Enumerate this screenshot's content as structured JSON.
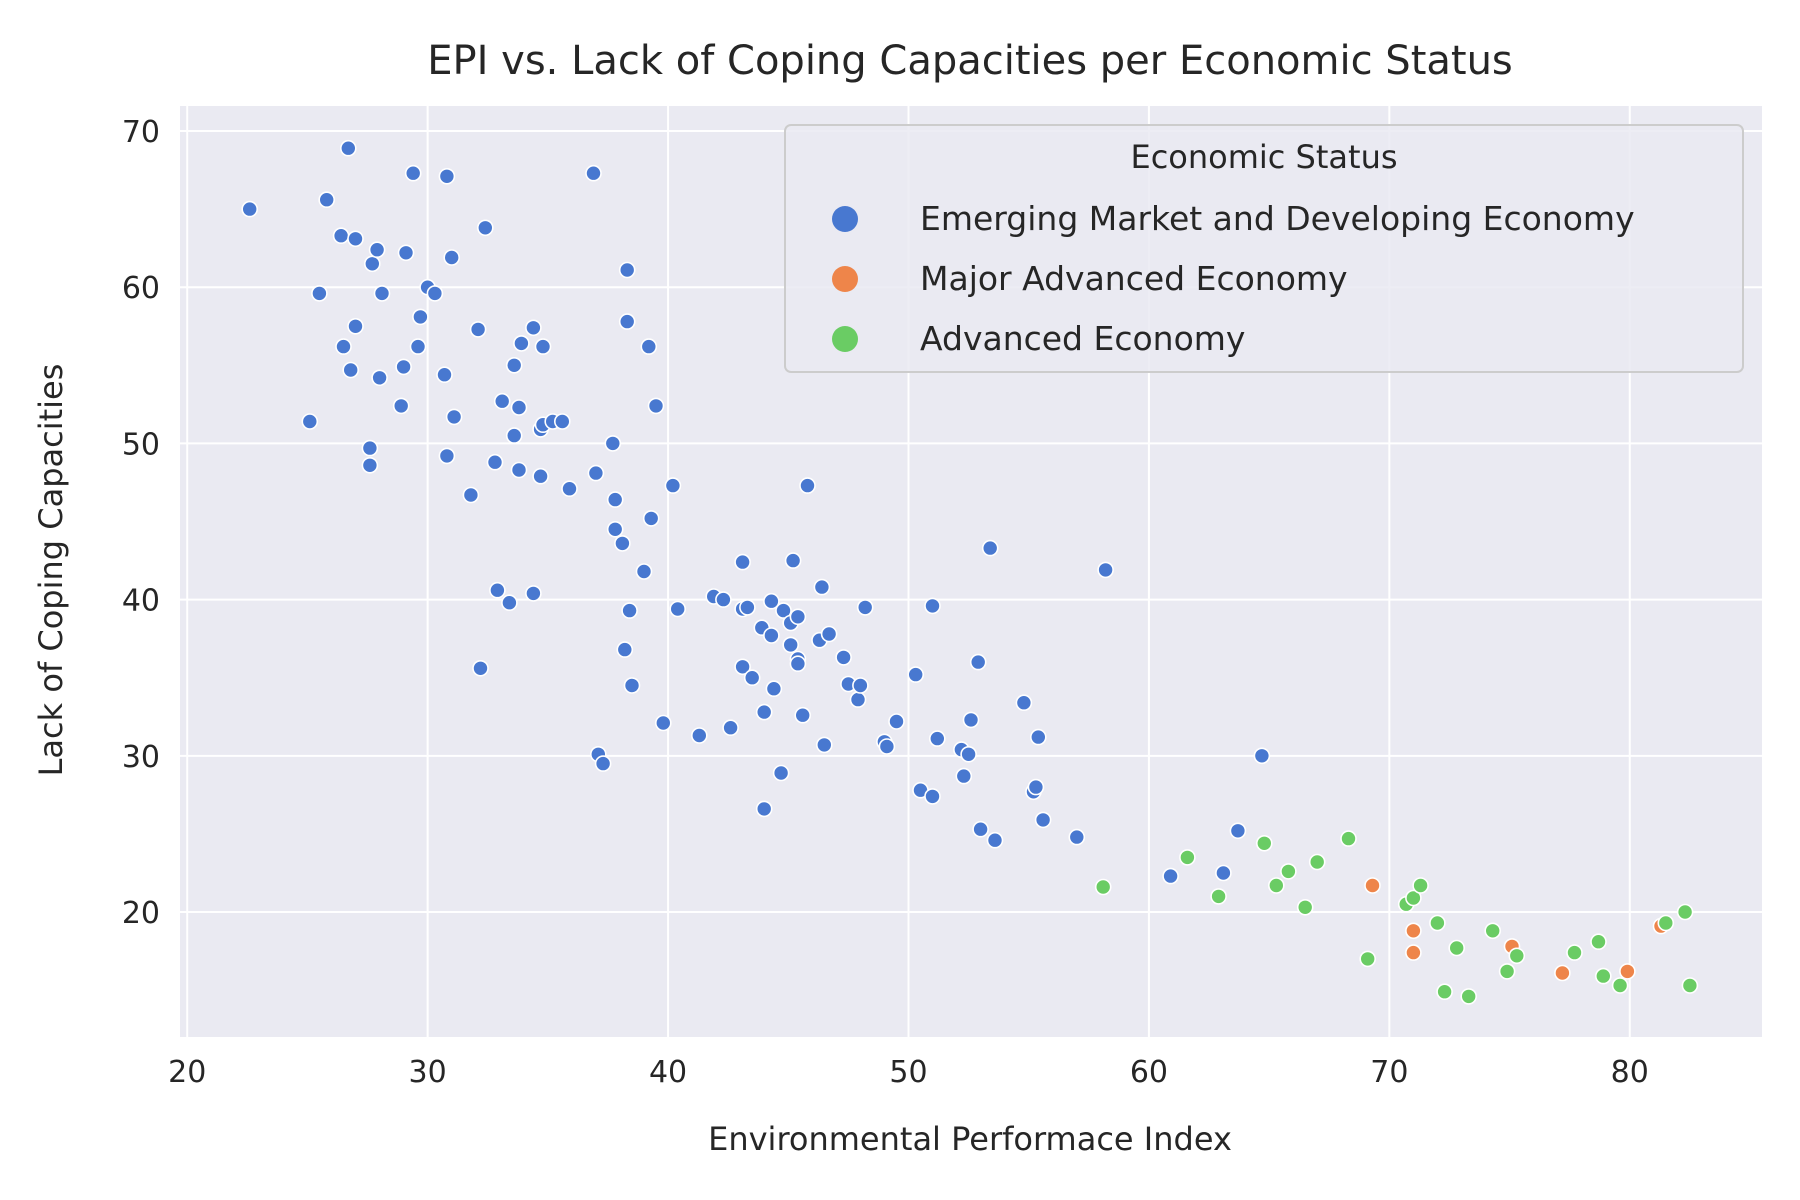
{
  "chart_data": {
    "type": "scatter",
    "title": "EPI vs. Lack of Coping Capacities per Economic Status",
    "xlabel": "Environmental Performace Index",
    "ylabel": "Lack of Coping Capacities",
    "xlim": [
      19.7,
      85.5
    ],
    "ylim": [
      12,
      71.6
    ],
    "xticks": [
      20,
      30,
      40,
      50,
      60,
      70,
      80
    ],
    "yticks": [
      20,
      30,
      40,
      50,
      60,
      70
    ],
    "grid": true,
    "legend": {
      "title": "Economic Status",
      "placement": "top-right"
    },
    "series": [
      {
        "name": "Emerging Market and Developing Economy",
        "color": "#4878d0",
        "points": [
          [
            22.6,
            65.0
          ],
          [
            25.1,
            51.4
          ],
          [
            25.5,
            59.6
          ],
          [
            25.8,
            65.6
          ],
          [
            26.4,
            63.3
          ],
          [
            26.5,
            56.2
          ],
          [
            26.7,
            68.9
          ],
          [
            26.8,
            54.7
          ],
          [
            27.0,
            57.5
          ],
          [
            27.0,
            63.1
          ],
          [
            27.6,
            49.7
          ],
          [
            27.6,
            48.6
          ],
          [
            27.7,
            61.5
          ],
          [
            27.9,
            62.4
          ],
          [
            28.0,
            54.2
          ],
          [
            28.1,
            59.6
          ],
          [
            28.9,
            52.4
          ],
          [
            29.0,
            54.9
          ],
          [
            29.1,
            62.2
          ],
          [
            29.4,
            67.3
          ],
          [
            29.6,
            56.2
          ],
          [
            29.7,
            58.1
          ],
          [
            30.0,
            60.0
          ],
          [
            30.3,
            59.6
          ],
          [
            30.7,
            54.4
          ],
          [
            30.8,
            49.2
          ],
          [
            30.8,
            67.1
          ],
          [
            31.0,
            61.9
          ],
          [
            31.1,
            51.7
          ],
          [
            31.8,
            46.7
          ],
          [
            32.1,
            57.3
          ],
          [
            32.2,
            35.6
          ],
          [
            32.4,
            63.8
          ],
          [
            32.8,
            48.8
          ],
          [
            32.9,
            40.6
          ],
          [
            33.1,
            52.7
          ],
          [
            33.4,
            39.8
          ],
          [
            33.6,
            55.0
          ],
          [
            33.6,
            50.5
          ],
          [
            33.8,
            52.3
          ],
          [
            33.8,
            48.3
          ],
          [
            33.9,
            56.4
          ],
          [
            34.4,
            57.4
          ],
          [
            34.4,
            40.4
          ],
          [
            34.7,
            50.9
          ],
          [
            34.8,
            51.2
          ],
          [
            34.7,
            47.9
          ],
          [
            34.8,
            56.2
          ],
          [
            35.2,
            51.4
          ],
          [
            35.6,
            51.4
          ],
          [
            35.9,
            47.1
          ],
          [
            36.9,
            67.3
          ],
          [
            37.0,
            48.1
          ],
          [
            37.1,
            30.1
          ],
          [
            37.3,
            29.5
          ],
          [
            37.7,
            50.0
          ],
          [
            37.8,
            46.4
          ],
          [
            37.8,
            44.5
          ],
          [
            38.1,
            43.6
          ],
          [
            38.2,
            36.8
          ],
          [
            38.3,
            61.1
          ],
          [
            38.3,
            57.8
          ],
          [
            38.4,
            39.3
          ],
          [
            38.5,
            34.5
          ],
          [
            39.0,
            41.8
          ],
          [
            39.2,
            56.2
          ],
          [
            39.3,
            45.2
          ],
          [
            39.5,
            52.4
          ],
          [
            39.8,
            32.1
          ],
          [
            40.2,
            47.3
          ],
          [
            40.4,
            39.4
          ],
          [
            41.3,
            31.3
          ],
          [
            41.9,
            40.2
          ],
          [
            42.3,
            40.0
          ],
          [
            42.6,
            31.8
          ],
          [
            43.1,
            42.4
          ],
          [
            43.1,
            39.4
          ],
          [
            43.1,
            35.7
          ],
          [
            43.3,
            39.5
          ],
          [
            43.5,
            35.0
          ],
          [
            43.9,
            38.2
          ],
          [
            44.0,
            32.8
          ],
          [
            44.0,
            26.6
          ],
          [
            44.3,
            39.9
          ],
          [
            44.3,
            37.7
          ],
          [
            44.4,
            34.3
          ],
          [
            44.7,
            28.9
          ],
          [
            44.8,
            39.3
          ],
          [
            45.1,
            38.5
          ],
          [
            45.1,
            37.1
          ],
          [
            45.2,
            42.5
          ],
          [
            45.4,
            38.9
          ],
          [
            45.4,
            36.2
          ],
          [
            45.4,
            35.9
          ],
          [
            45.6,
            32.6
          ],
          [
            45.8,
            47.3
          ],
          [
            46.3,
            37.4
          ],
          [
            46.4,
            40.8
          ],
          [
            46.5,
            30.7
          ],
          [
            46.7,
            37.8
          ],
          [
            47.3,
            36.3
          ],
          [
            47.5,
            34.6
          ],
          [
            47.9,
            33.6
          ],
          [
            48.0,
            34.5
          ],
          [
            48.2,
            39.5
          ],
          [
            49.0,
            30.9
          ],
          [
            49.1,
            30.6
          ],
          [
            49.5,
            32.2
          ],
          [
            50.3,
            35.2
          ],
          [
            50.5,
            27.8
          ],
          [
            51.0,
            27.4
          ],
          [
            51.0,
            39.6
          ],
          [
            51.2,
            31.1
          ],
          [
            52.2,
            30.4
          ],
          [
            52.3,
            28.7
          ],
          [
            52.5,
            30.1
          ],
          [
            52.6,
            32.3
          ],
          [
            52.9,
            36.0
          ],
          [
            53.0,
            25.3
          ],
          [
            53.4,
            43.3
          ],
          [
            53.6,
            24.6
          ],
          [
            54.8,
            33.4
          ],
          [
            55.2,
            27.7
          ],
          [
            55.3,
            28.0
          ],
          [
            55.4,
            31.2
          ],
          [
            55.6,
            25.9
          ],
          [
            57.0,
            24.8
          ],
          [
            58.2,
            41.9
          ],
          [
            60.9,
            22.3
          ],
          [
            63.1,
            22.5
          ],
          [
            63.7,
            25.2
          ],
          [
            64.7,
            30.0
          ]
        ]
      },
      {
        "name": "Major Advanced Economy",
        "color": "#ee854a",
        "points": [
          [
            69.3,
            21.7
          ],
          [
            71.0,
            18.8
          ],
          [
            71.0,
            17.4
          ],
          [
            75.1,
            17.8
          ],
          [
            77.2,
            16.1
          ],
          [
            79.9,
            16.2
          ],
          [
            81.3,
            19.1
          ]
        ]
      },
      {
        "name": "Advanced Economy",
        "color": "#6acc64",
        "points": [
          [
            58.1,
            21.6
          ],
          [
            61.6,
            23.5
          ],
          [
            62.9,
            21.0
          ],
          [
            64.8,
            24.4
          ],
          [
            65.3,
            21.7
          ],
          [
            65.8,
            22.6
          ],
          [
            66.5,
            20.3
          ],
          [
            67.0,
            23.2
          ],
          [
            68.3,
            24.7
          ],
          [
            69.1,
            17.0
          ],
          [
            70.7,
            20.5
          ],
          [
            71.0,
            20.9
          ],
          [
            71.3,
            21.7
          ],
          [
            72.0,
            19.3
          ],
          [
            72.3,
            14.9
          ],
          [
            72.8,
            17.7
          ],
          [
            73.3,
            14.6
          ],
          [
            74.3,
            18.8
          ],
          [
            74.9,
            16.2
          ],
          [
            75.3,
            17.2
          ],
          [
            77.7,
            17.4
          ],
          [
            78.7,
            18.1
          ],
          [
            78.9,
            15.9
          ],
          [
            79.6,
            15.3
          ],
          [
            81.5,
            19.3
          ],
          [
            82.3,
            20.0
          ],
          [
            82.5,
            15.3
          ]
        ]
      }
    ]
  }
}
